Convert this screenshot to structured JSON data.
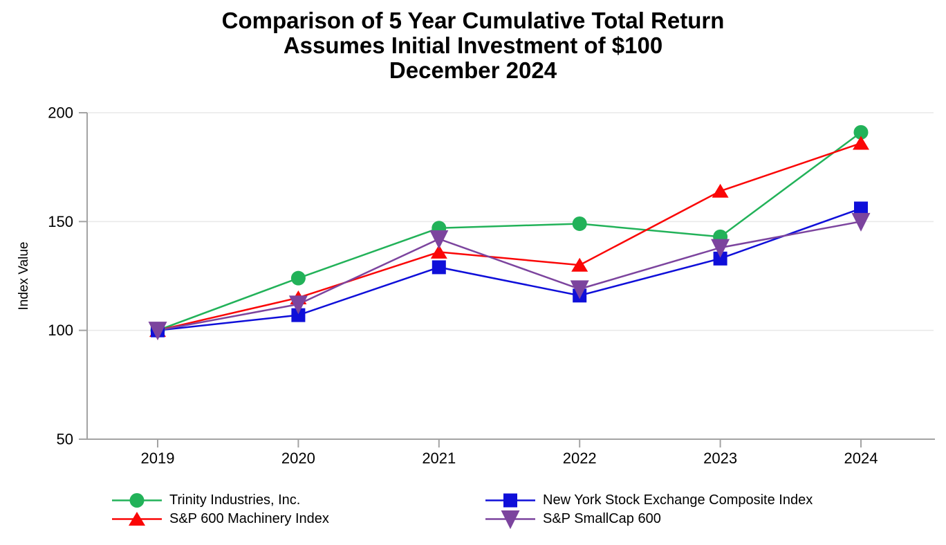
{
  "title": {
    "line1": "Comparison of 5 Year Cumulative Total Return",
    "line2": "Assumes Initial Investment of $100",
    "line3": "December 2024"
  },
  "chart_data": {
    "type": "line",
    "title": "Comparison of 5 Year Cumulative Total Return",
    "subtitle": "Assumes Initial Investment of $100",
    "date_label": "December 2024",
    "xlabel": "",
    "ylabel": "Index Value",
    "categories": [
      "2019",
      "2020",
      "2021",
      "2022",
      "2023",
      "2024"
    ],
    "ylim": [
      50,
      200
    ],
    "yticks": [
      50,
      100,
      150,
      200
    ],
    "grid": "horizontal",
    "legend_position": "bottom",
    "series": [
      {
        "id": "trinity",
        "name": "Trinity Industries, Inc.",
        "marker": "circle",
        "color": "#22b259",
        "values": [
          100,
          124,
          147,
          149,
          143,
          191
        ]
      },
      {
        "id": "sp600-machinery",
        "name": "S&P 600 Machinery Index",
        "marker": "triangle-up",
        "color": "#fa0606",
        "values": [
          100,
          115,
          136,
          130,
          164,
          186
        ]
      },
      {
        "id": "nyse-composite",
        "name": "New York Stock Exchange Composite Index",
        "marker": "square",
        "color": "#0f0fd9",
        "values": [
          100,
          107,
          129,
          116,
          133,
          156
        ]
      },
      {
        "id": "sp-smallcap-600",
        "name": "S&P SmallCap 600",
        "marker": "triangle-down",
        "color": "#7c449e",
        "values": [
          100,
          112,
          142,
          119,
          138,
          150
        ]
      }
    ],
    "axis_color": "#a3a3a3",
    "grid_color": "#e8e8e8",
    "text_color": "#000000",
    "background_color": "#ffffff"
  }
}
